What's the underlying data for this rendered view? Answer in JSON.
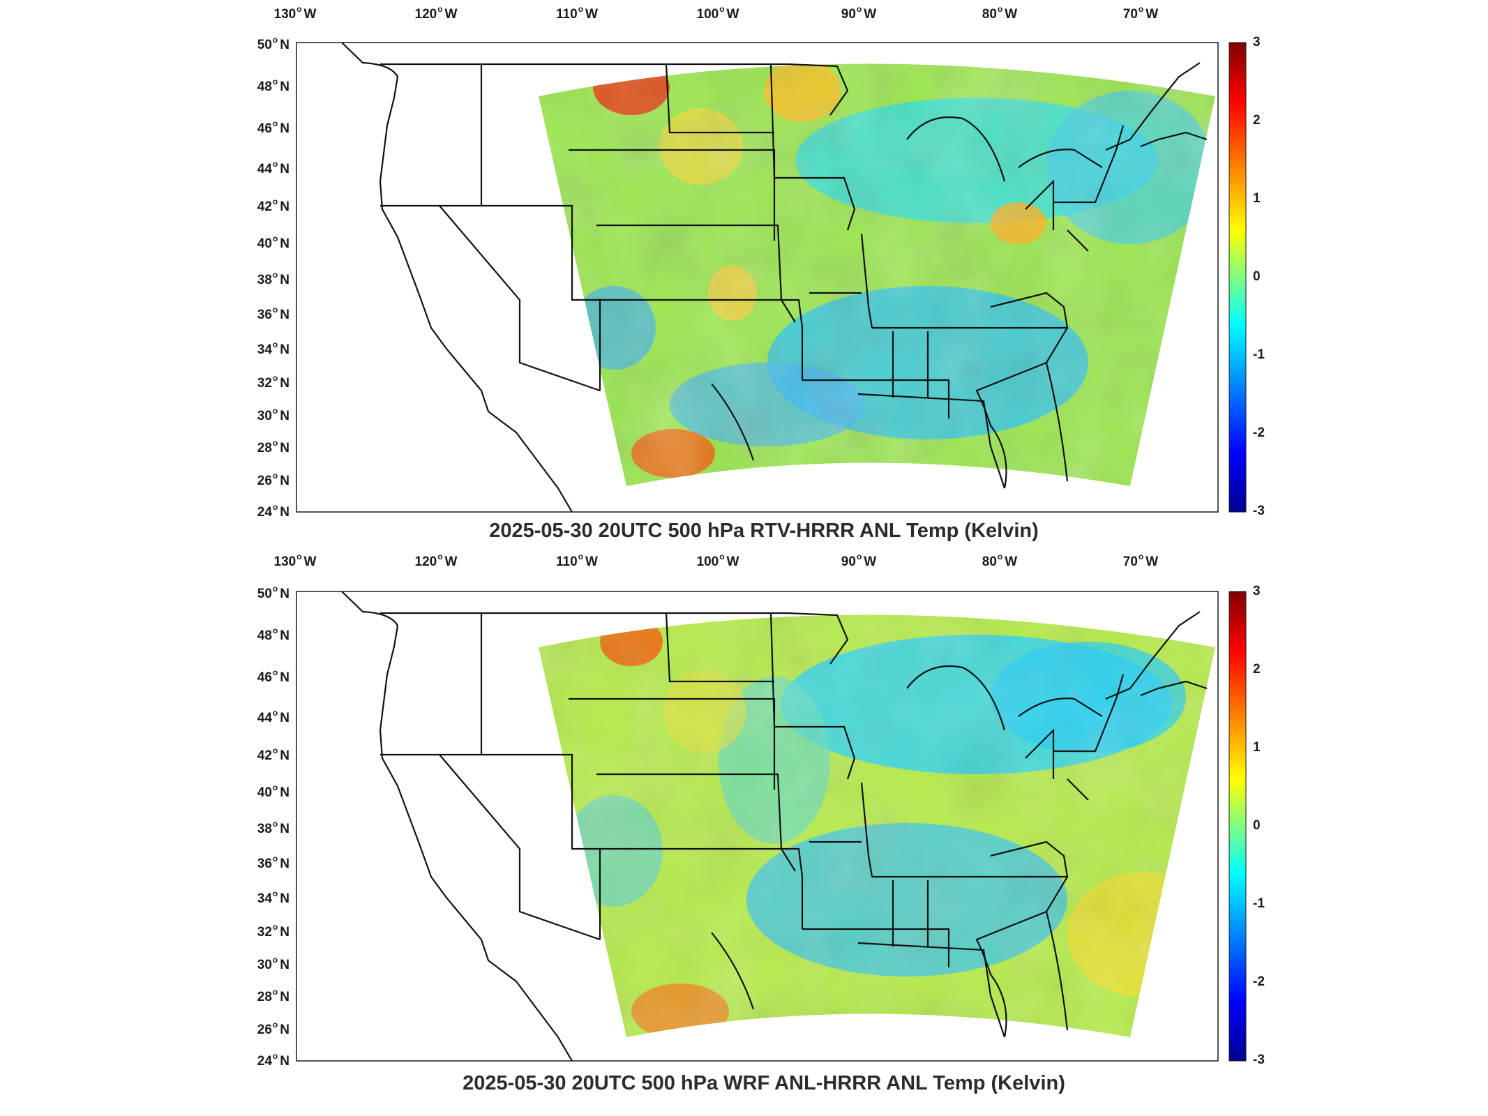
{
  "colormap_colors": [
    "#00008f",
    "#0000ff",
    "#008fff",
    "#00ffff",
    "#80ff80",
    "#ffff00",
    "#ff8f00",
    "#ff0000",
    "#800000"
  ],
  "panels": [
    {
      "id": "rtv",
      "title": "2025-05-30 20UTC 500 hPa RTV-HRRR ANL Temp (Kelvin)",
      "lon_ticks": [
        "130",
        "120",
        "110",
        "100",
        "90",
        "80",
        "70"
      ],
      "lon_suffix": "W",
      "lat_ticks": [
        "50",
        "48",
        "46",
        "44",
        "42",
        "40",
        "38",
        "36",
        "34",
        "32",
        "30",
        "28",
        "26",
        "24"
      ],
      "lat_suffix": "N",
      "colorbar_ticks": [
        "3",
        "2",
        "1",
        "0",
        "-1",
        "-2",
        "-3"
      ],
      "colorbar_range": [
        -3,
        3
      ]
    },
    {
      "id": "wrf",
      "title": "2025-05-30 20UTC 500 hPa WRF ANL-HRRR ANL Temp (Kelvin)",
      "lon_ticks": [
        "130",
        "120",
        "110",
        "100",
        "90",
        "80",
        "70"
      ],
      "lon_suffix": "W",
      "lat_ticks": [
        "50",
        "48",
        "46",
        "44",
        "42",
        "40",
        "38",
        "36",
        "34",
        "32",
        "30",
        "28",
        "26",
        "24"
      ],
      "lat_suffix": "N",
      "colorbar_ticks": [
        "3",
        "2",
        "1",
        "0",
        "-1",
        "-2",
        "-3"
      ],
      "colorbar_range": [
        -3,
        3
      ]
    }
  ]
}
